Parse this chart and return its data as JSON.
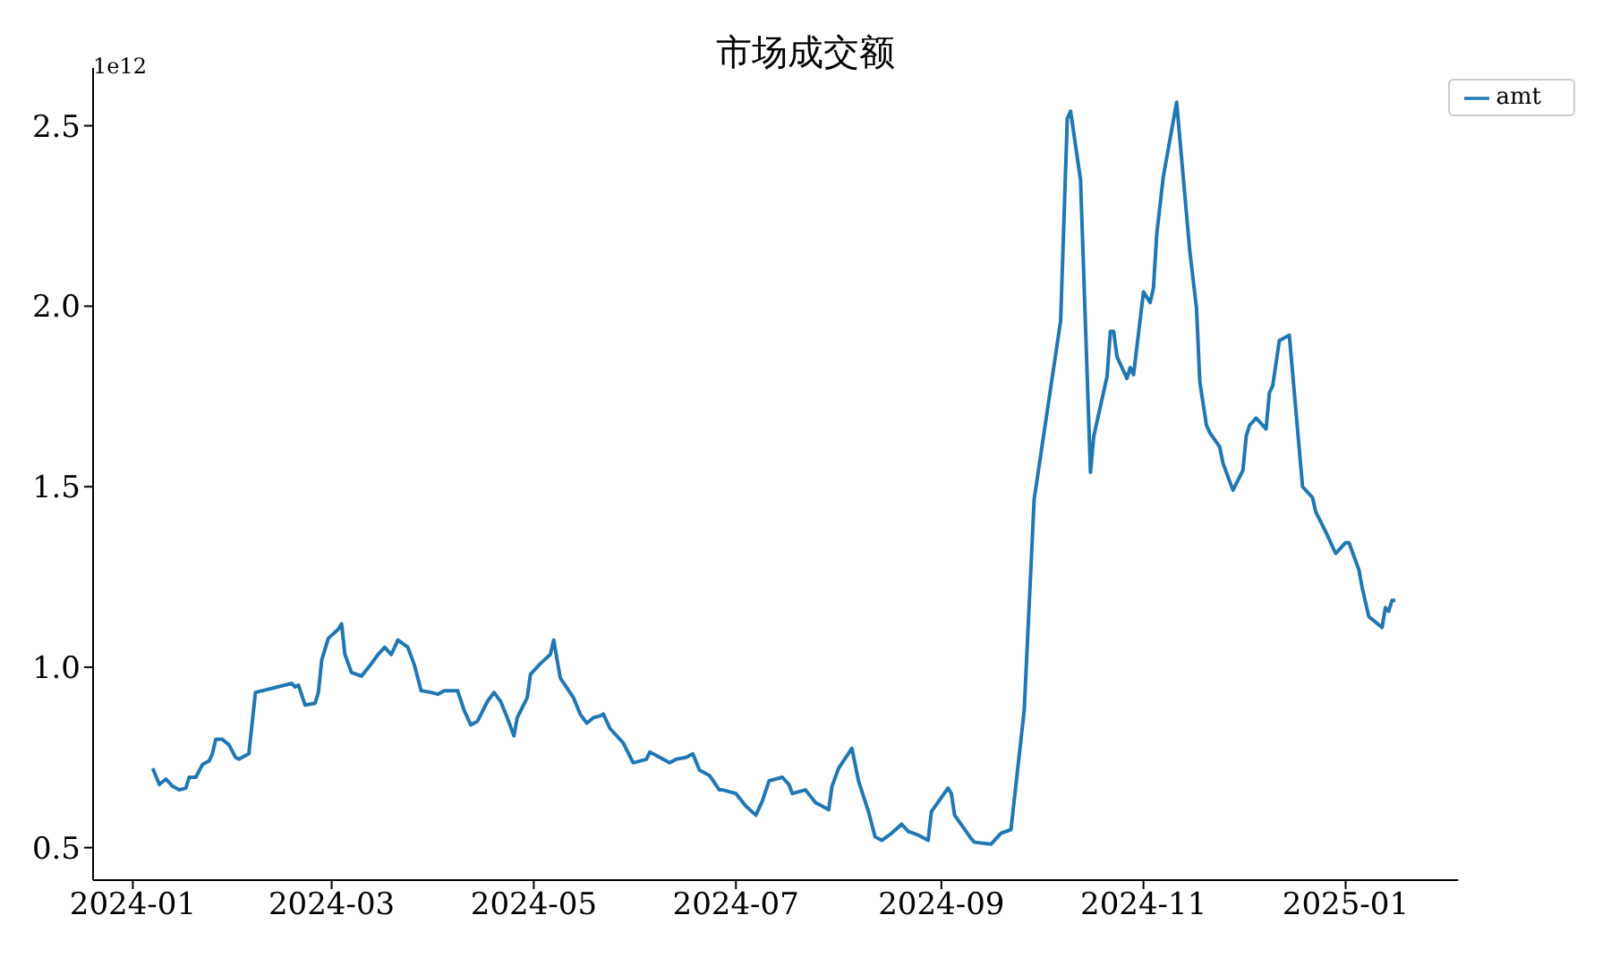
{
  "chart_data": {
    "type": "line",
    "title": "市场成交额",
    "annotations": [
      "1e12"
    ],
    "x": [
      "2024-01-07",
      "2024-01-09",
      "2024-01-11",
      "2024-01-13",
      "2024-01-15",
      "2024-01-17",
      "2024-01-18",
      "2024-01-20",
      "2024-01-22",
      "2024-01-24",
      "2024-01-25",
      "2024-01-26",
      "2024-01-28",
      "2024-01-30",
      "2024-02-01",
      "2024-02-02",
      "2024-02-05",
      "2024-02-07",
      "2024-02-18",
      "2024-02-19",
      "2024-02-20",
      "2024-02-22",
      "2024-02-25",
      "2024-02-26",
      "2024-02-27",
      "2024-02-29",
      "2024-03-03",
      "2024-03-04",
      "2024-03-05",
      "2024-03-07",
      "2024-03-10",
      "2024-03-13",
      "2024-03-15",
      "2024-03-17",
      "2024-03-19",
      "2024-03-21",
      "2024-03-24",
      "2024-03-26",
      "2024-03-28",
      "2024-03-31",
      "2024-04-02",
      "2024-04-04",
      "2024-04-08",
      "2024-04-10",
      "2024-04-12",
      "2024-04-14",
      "2024-04-17",
      "2024-04-19",
      "2024-04-21",
      "2024-04-23",
      "2024-04-25",
      "2024-04-26",
      "2024-04-29",
      "2024-04-30",
      "2024-05-03",
      "2024-05-06",
      "2024-05-07",
      "2024-05-09",
      "2024-05-13",
      "2024-05-15",
      "2024-05-17",
      "2024-05-19",
      "2024-05-21",
      "2024-05-22",
      "2024-05-24",
      "2024-05-28",
      "2024-05-31",
      "2024-06-02",
      "2024-06-04",
      "2024-06-05",
      "2024-06-11",
      "2024-06-13",
      "2024-06-16",
      "2024-06-18",
      "2024-06-20",
      "2024-06-23",
      "2024-06-26",
      "2024-06-27",
      "2024-07-01",
      "2024-07-04",
      "2024-07-07",
      "2024-07-09",
      "2024-07-11",
      "2024-07-15",
      "2024-07-17",
      "2024-07-18",
      "2024-07-22",
      "2024-07-25",
      "2024-07-29",
      "2024-07-30",
      "2024-08-01",
      "2024-08-05",
      "2024-08-07",
      "2024-08-10",
      "2024-08-12",
      "2024-08-14",
      "2024-08-17",
      "2024-08-20",
      "2024-08-22",
      "2024-08-25",
      "2024-08-28",
      "2024-08-29",
      "2024-09-03",
      "2024-09-04",
      "2024-09-05",
      "2024-09-10",
      "2024-09-11",
      "2024-09-16",
      "2024-09-19",
      "2024-09-22",
      "2024-09-26",
      "2024-09-29",
      "2024-10-07",
      "2024-10-09",
      "2024-10-10",
      "2024-10-13",
      "2024-10-16",
      "2024-10-17",
      "2024-10-21",
      "2024-10-22",
      "2024-10-23",
      "2024-10-24",
      "2024-10-27",
      "2024-10-28",
      "2024-10-29",
      "2024-11-01",
      "2024-11-03",
      "2024-11-04",
      "2024-11-05",
      "2024-11-07",
      "2024-11-11",
      "2024-11-15",
      "2024-11-17",
      "2024-11-18",
      "2024-11-20",
      "2024-11-21",
      "2024-11-24",
      "2024-11-25",
      "2024-11-28",
      "2024-12-01",
      "2024-12-02",
      "2024-12-03",
      "2024-12-05",
      "2024-12-08",
      "2024-12-09",
      "2024-12-10",
      "2024-12-12",
      "2024-12-15",
      "2024-12-19",
      "2024-12-22",
      "2024-12-23",
      "2024-12-26",
      "2024-12-29",
      "2025-01-01",
      "2025-01-02",
      "2025-01-05",
      "2025-01-06",
      "2025-01-08",
      "2025-01-12",
      "2025-01-13",
      "2025-01-14",
      "2025-01-15",
      "2025-01-16"
    ],
    "series": [
      {
        "name": "amt",
        "color": "#1f77b4",
        "values": [
          0.72,
          0.675,
          0.69,
          0.67,
          0.66,
          0.665,
          0.695,
          0.695,
          0.73,
          0.74,
          0.76,
          0.8,
          0.8,
          0.785,
          0.75,
          0.745,
          0.76,
          0.93,
          0.955,
          0.945,
          0.95,
          0.895,
          0.9,
          0.93,
          1.02,
          1.08,
          1.105,
          1.12,
          1.035,
          0.985,
          0.975,
          1.01,
          1.035,
          1.055,
          1.035,
          1.075,
          1.055,
          1.005,
          0.935,
          0.93,
          0.925,
          0.935,
          0.935,
          0.88,
          0.84,
          0.85,
          0.905,
          0.93,
          0.905,
          0.86,
          0.81,
          0.86,
          0.915,
          0.98,
          1.01,
          1.035,
          1.075,
          0.97,
          0.915,
          0.87,
          0.845,
          0.86,
          0.865,
          0.87,
          0.83,
          0.79,
          0.735,
          0.74,
          0.745,
          0.765,
          0.735,
          0.745,
          0.75,
          0.76,
          0.715,
          0.7,
          0.66,
          0.66,
          0.65,
          0.615,
          0.59,
          0.63,
          0.685,
          0.695,
          0.675,
          0.65,
          0.66,
          0.625,
          0.605,
          0.67,
          0.72,
          0.775,
          0.685,
          0.6,
          0.53,
          0.52,
          0.54,
          0.565,
          0.545,
          0.535,
          0.52,
          0.6,
          0.665,
          0.65,
          0.59,
          0.525,
          0.515,
          0.51,
          0.54,
          0.55,
          0.88,
          1.465,
          1.96,
          2.52,
          2.54,
          2.35,
          1.54,
          1.64,
          1.805,
          1.93,
          1.93,
          1.86,
          1.8,
          1.83,
          1.81,
          2.04,
          2.01,
          2.05,
          2.2,
          2.36,
          2.565,
          2.15,
          1.995,
          1.79,
          1.67,
          1.65,
          1.61,
          1.565,
          1.49,
          1.545,
          1.64,
          1.67,
          1.69,
          1.66,
          1.76,
          1.78,
          1.905,
          1.92,
          1.5,
          1.47,
          1.43,
          1.375,
          1.315,
          1.345,
          1.345,
          1.27,
          1.22,
          1.14,
          1.11,
          1.165,
          1.155,
          1.185,
          1.185
        ]
      }
    ],
    "xlim": [
      "2023-12-20",
      "2025-02-04"
    ],
    "xticks": [
      "2024-01",
      "2024-03",
      "2024-05",
      "2024-07",
      "2024-09",
      "2024-11",
      "2025-01"
    ],
    "ylim": [
      0.41,
      2.66
    ],
    "yticks": [
      0.5,
      {
        "value": 1,
        "label": "1.0"
      },
      1.5,
      {
        "value": 2,
        "label": "2.0"
      },
      2.5
    ],
    "grid": false,
    "legend": "top right",
    "marker": "none",
    "line_style": "solid"
  }
}
